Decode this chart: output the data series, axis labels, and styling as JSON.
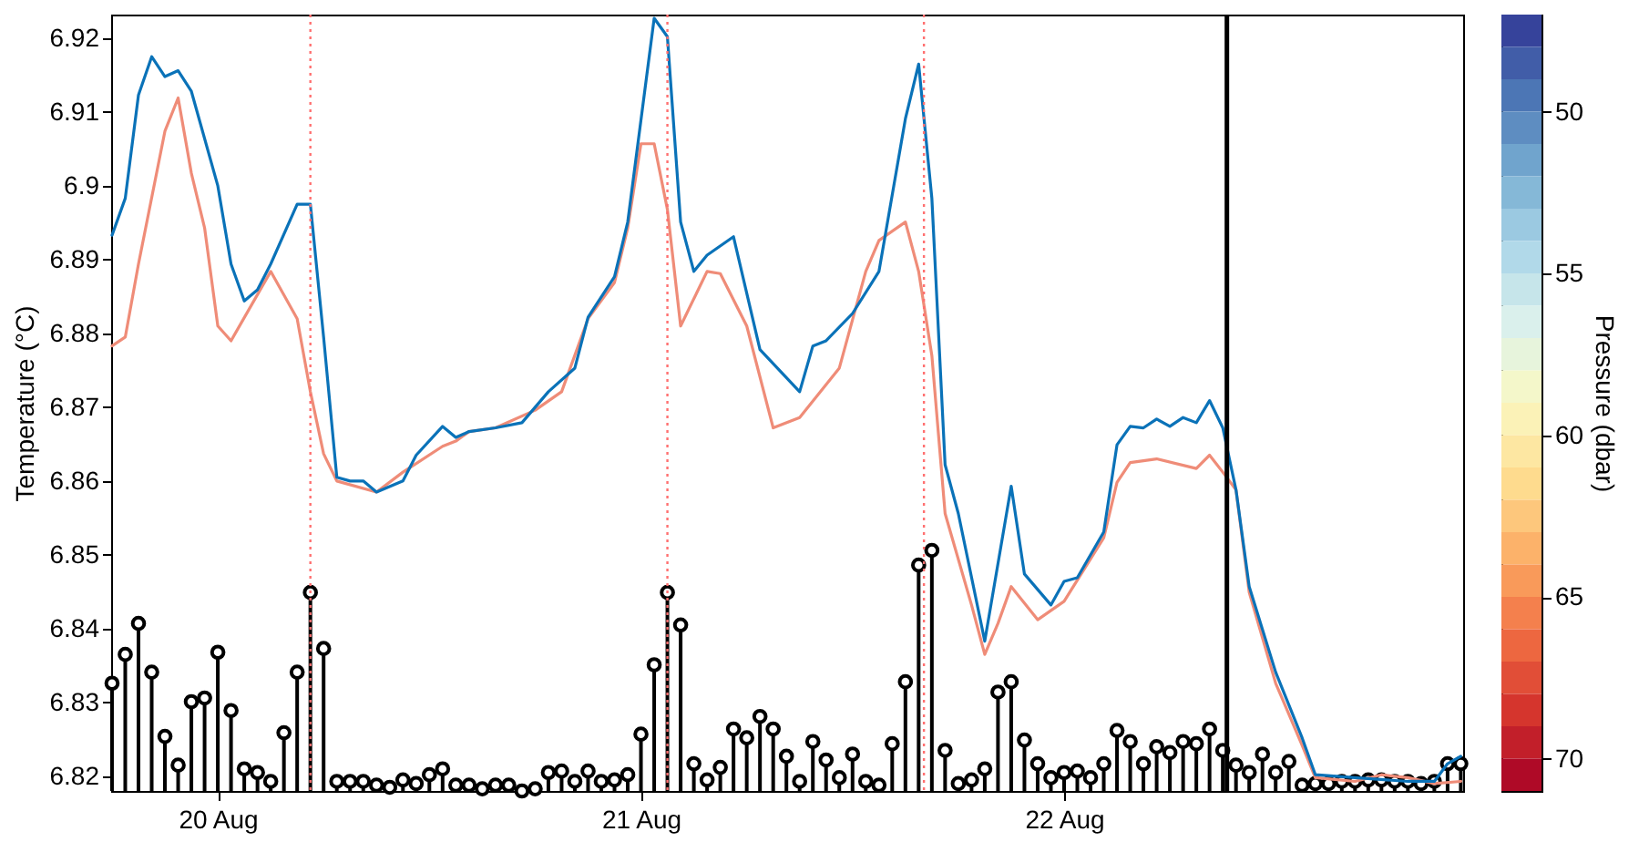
{
  "chart_data": {
    "type": "line",
    "ylabel": "Temperature (°C)",
    "clabel": "Pressure (dbar)",
    "xlim": [
      "--08-19T17:57",
      "--08-22T22:38"
    ],
    "ylim": [
      6.818,
      6.9232
    ],
    "xticks": [
      {
        "value": "--08-20",
        "label": "20 Aug"
      },
      {
        "value": "--08-21",
        "label": "21 Aug"
      },
      {
        "value": "--08-22",
        "label": "22 Aug"
      }
    ],
    "yticks": [
      6.82,
      6.83,
      6.84,
      6.85,
      6.86,
      6.87,
      6.88,
      6.89,
      6.9,
      6.91,
      6.92
    ],
    "clim": [
      47,
      71
    ],
    "cticks": [
      50,
      55,
      60,
      65,
      70
    ],
    "x": [
      "--08-19T18:00",
      "--08-19T18:45",
      "--08-19T19:30",
      "--08-19T20:15",
      "--08-19T21:00",
      "--08-19T21:45",
      "--08-19T22:30",
      "--08-19T23:15",
      "--08-20T00:00",
      "--08-20T00:45",
      "--08-20T01:30",
      "--08-20T02:15",
      "--08-20T03:00",
      "--08-20T03:45",
      "--08-20T04:30",
      "--08-20T05:15",
      "--08-20T06:00",
      "--08-20T06:45",
      "--08-20T07:30",
      "--08-20T08:15",
      "--08-20T09:00",
      "--08-20T09:45",
      "--08-20T10:30",
      "--08-20T11:15",
      "--08-20T12:00",
      "--08-20T12:45",
      "--08-20T13:30",
      "--08-20T14:15",
      "--08-20T15:00",
      "--08-20T15:45",
      "--08-20T16:30",
      "--08-20T17:15",
      "--08-20T18:00",
      "--08-20T18:45",
      "--08-20T19:30",
      "--08-20T20:15",
      "--08-20T21:00",
      "--08-20T21:45",
      "--08-20T22:30",
      "--08-20T23:15",
      "--08-21T00:00",
      "--08-21T00:45",
      "--08-21T01:30",
      "--08-21T02:15",
      "--08-21T03:00",
      "--08-21T03:45",
      "--08-21T04:30",
      "--08-21T05:15",
      "--08-21T06:00",
      "--08-21T06:45",
      "--08-21T07:30",
      "--08-21T08:15",
      "--08-21T09:00",
      "--08-21T09:45",
      "--08-21T10:30",
      "--08-21T11:15",
      "--08-21T12:00",
      "--08-21T12:45",
      "--08-21T13:30",
      "--08-21T14:15",
      "--08-21T15:00",
      "--08-21T15:45",
      "--08-21T16:30",
      "--08-21T17:15",
      "--08-21T18:00",
      "--08-21T18:45",
      "--08-21T19:30",
      "--08-21T20:15",
      "--08-21T21:00",
      "--08-21T21:45",
      "--08-21T22:30",
      "--08-21T23:15",
      "--08-22T00:00",
      "--08-22T00:45",
      "--08-22T01:30",
      "--08-22T02:15",
      "--08-22T03:00",
      "--08-22T03:45",
      "--08-22T04:30",
      "--08-22T05:15",
      "--08-22T06:00",
      "--08-22T06:45",
      "--08-22T07:30",
      "--08-22T08:15",
      "--08-22T09:00",
      "--08-22T09:45",
      "--08-22T10:30",
      "--08-22T11:15",
      "--08-22T12:00",
      "--08-22T12:45",
      "--08-22T13:30",
      "--08-22T14:15",
      "--08-22T15:00",
      "--08-22T15:45",
      "--08-22T16:30",
      "--08-22T17:15",
      "--08-22T18:00",
      "--08-22T18:45",
      "--08-22T19:30",
      "--08-22T20:15",
      "--08-22T21:00",
      "--08-22T21:45",
      "--08-22T22:30"
    ],
    "series": [
      {
        "type": "lollipop",
        "color": "#000000",
        "marker": "circle",
        "values": [
          6.8326,
          6.8365,
          6.8407,
          6.8341,
          6.8254,
          6.8215,
          6.8301,
          6.8306,
          6.8368,
          6.8289,
          6.821,
          6.8205,
          6.8193,
          6.8259,
          6.8341,
          6.8449,
          6.8373,
          6.8193,
          6.8193,
          6.8193,
          6.8188,
          6.8185,
          6.8195,
          6.819,
          6.8202,
          6.821,
          6.8188,
          6.8188,
          6.8183,
          6.8188,
          6.8188,
          6.818,
          6.8183,
          6.8205,
          6.8207,
          6.8193,
          6.8207,
          6.8193,
          6.8195,
          6.8202,
          6.8257,
          6.8351,
          6.8449,
          6.8405,
          6.8217,
          6.8195,
          6.8212,
          6.8264,
          6.8252,
          6.8281,
          6.8264,
          6.8227,
          6.8193,
          6.8247,
          6.8222,
          6.8198,
          6.823,
          6.8193,
          6.8188,
          6.8244,
          6.8328,
          6.8486,
          6.8506,
          6.8235,
          6.819,
          6.8195,
          6.821,
          6.8314,
          6.8328,
          6.8249,
          6.8217,
          6.8198,
          6.8205,
          6.8207,
          6.8198,
          6.8217,
          6.8262,
          6.8247,
          6.8217,
          6.824,
          6.8232,
          6.8247,
          6.8244,
          6.8264,
          6.8235,
          6.8215,
          6.8205,
          6.823,
          6.8205,
          6.822,
          6.8188,
          6.819,
          6.819,
          6.8193,
          6.8193,
          6.8195,
          6.8195,
          6.8193,
          6.8193,
          6.819,
          6.8193,
          6.8217,
          6.8217
        ]
      },
      {
        "type": "line",
        "color": "#ef8c78",
        "x": [
          "--08-19T18:00",
          "--08-19T18:45",
          "--08-19T19:30",
          "--08-19T21:00",
          "--08-19T21:45",
          "--08-19T22:30",
          "--08-19T23:15",
          "--08-20T00:00",
          "--08-20T00:45",
          "--08-20T03:00",
          "--08-20T04:30",
          "--08-20T05:15",
          "--08-20T06:00",
          "--08-20T06:45",
          "--08-20T09:00",
          "--08-20T10:30",
          "--08-20T12:45",
          "--08-20T13:30",
          "--08-20T14:15",
          "--08-20T15:45",
          "--08-20T18:00",
          "--08-20T19:30",
          "--08-20T21:00",
          "--08-20T22:30",
          "--08-20T23:15",
          "--08-21T00:00",
          "--08-21T00:45",
          "--08-21T01:30",
          "--08-21T02:15",
          "--08-21T03:45",
          "--08-21T04:30",
          "--08-21T06:00",
          "--08-21T07:30",
          "--08-21T09:00",
          "--08-21T11:15",
          "--08-21T12:45",
          "--08-21T13:30",
          "--08-21T15:00",
          "--08-21T15:45",
          "--08-21T16:30",
          "--08-21T17:15",
          "--08-21T18:45",
          "--08-21T19:30",
          "--08-21T20:15",
          "--08-21T21:00",
          "--08-21T22:30",
          "--08-22T00:00",
          "--08-22T02:15",
          "--08-22T03:00",
          "--08-22T03:45",
          "--08-22T05:15",
          "--08-22T07:30",
          "--08-22T08:15",
          "--08-22T09:00",
          "--08-22T09:45",
          "--08-22T10:30",
          "--08-22T12:00",
          "--08-22T13:30",
          "--08-22T14:15",
          "--08-22T16:30",
          "--08-22T18:00",
          "--08-22T19:30",
          "--08-22T21:00",
          "--08-22T22:30"
        ],
        "values": [
          6.8783,
          6.8795,
          6.8894,
          6.9074,
          6.9119,
          6.9017,
          6.8943,
          6.881,
          6.879,
          6.8884,
          6.882,
          6.8721,
          6.8637,
          6.86,
          6.8585,
          6.8612,
          6.8647,
          6.8654,
          6.8667,
          6.8672,
          6.8696,
          6.8721,
          6.882,
          6.8869,
          6.8943,
          6.9057,
          6.9057,
          6.8968,
          6.881,
          6.8884,
          6.8881,
          6.881,
          6.8672,
          6.8686,
          6.8753,
          6.8884,
          6.8926,
          6.8951,
          6.8884,
          6.877,
          6.8556,
          6.8432,
          6.8365,
          6.8407,
          6.8457,
          6.8412,
          6.8437,
          6.8523,
          6.8598,
          6.8625,
          6.863,
          6.8617,
          6.8635,
          6.8612,
          6.8588,
          6.8449,
          6.8326,
          6.8242,
          6.8198,
          6.8193,
          6.8202,
          6.8198,
          6.819,
          6.8193
        ]
      },
      {
        "type": "line",
        "color": "#0a72b8",
        "x": [
          "--08-19T18:00",
          "--08-19T18:45",
          "--08-19T19:30",
          "--08-19T20:15",
          "--08-19T21:00",
          "--08-19T21:45",
          "--08-19T22:30",
          "--08-20T00:00",
          "--08-20T00:45",
          "--08-20T01:30",
          "--08-20T02:15",
          "--08-20T03:00",
          "--08-20T04:30",
          "--08-20T05:15",
          "--08-20T06:00",
          "--08-20T06:45",
          "--08-20T07:30",
          "--08-20T08:15",
          "--08-20T09:00",
          "--08-20T10:30",
          "--08-20T11:15",
          "--08-20T12:45",
          "--08-20T13:30",
          "--08-20T14:15",
          "--08-20T15:45",
          "--08-20T17:15",
          "--08-20T18:45",
          "--08-20T20:15",
          "--08-20T21:00",
          "--08-20T22:30",
          "--08-20T23:15",
          "--08-21T00:45",
          "--08-21T01:30",
          "--08-21T02:15",
          "--08-21T03:00",
          "--08-21T03:45",
          "--08-21T05:15",
          "--08-21T06:45",
          "--08-21T09:00",
          "--08-21T09:45",
          "--08-21T10:30",
          "--08-21T12:00",
          "--08-21T13:30",
          "--08-21T15:00",
          "--08-21T15:45",
          "--08-21T16:30",
          "--08-21T17:15",
          "--08-21T18:00",
          "--08-21T19:30",
          "--08-21T21:00",
          "--08-21T21:45",
          "--08-21T23:15",
          "--08-22T00:00",
          "--08-22T00:45",
          "--08-22T02:15",
          "--08-22T03:00",
          "--08-22T03:45",
          "--08-22T04:30",
          "--08-22T05:15",
          "--08-22T06:00",
          "--08-22T06:45",
          "--08-22T07:30",
          "--08-22T08:15",
          "--08-22T09:00",
          "--08-22T09:45",
          "--08-22T10:30",
          "--08-22T12:00",
          "--08-22T13:30",
          "--08-22T14:15",
          "--08-22T16:30",
          "--08-22T19:30",
          "--08-22T21:00",
          "--08-22T21:45",
          "--08-22T22:30"
        ],
        "values": [
          6.8933,
          6.8983,
          6.9123,
          6.9175,
          6.9148,
          6.9156,
          6.9128,
          6.9,
          6.8894,
          6.8844,
          6.8859,
          6.8894,
          6.8975,
          6.8975,
          6.8795,
          6.8605,
          6.86,
          6.86,
          6.8585,
          6.86,
          6.8635,
          6.8674,
          6.8659,
          6.8667,
          6.8672,
          6.8679,
          6.8721,
          6.8753,
          6.8822,
          6.8877,
          6.8951,
          6.9227,
          6.9202,
          6.8951,
          6.8884,
          6.8906,
          6.8931,
          6.8778,
          6.8721,
          6.8783,
          6.879,
          6.8827,
          6.8884,
          6.9091,
          6.9165,
          6.8983,
          6.8622,
          6.8556,
          6.8383,
          6.8593,
          6.8474,
          6.8432,
          6.8464,
          6.8469,
          6.8531,
          6.8649,
          6.8674,
          6.8672,
          6.8684,
          6.8674,
          6.8686,
          6.8679,
          6.8709,
          6.8672,
          6.8588,
          6.8457,
          6.8341,
          6.8252,
          6.8202,
          6.8198,
          6.8193,
          6.8193,
          6.8217,
          6.8227
        ]
      }
    ],
    "ref_lines": [
      {
        "axis": "x",
        "value": "--08-20T05:15",
        "color": "#ff7070",
        "line_style": "dotted"
      },
      {
        "axis": "x",
        "value": "--08-21T01:30",
        "color": "#ff7070",
        "line_style": "dotted"
      },
      {
        "axis": "x",
        "value": "--08-21T16:03",
        "color": "#ff7070",
        "line_style": "dotted"
      },
      {
        "axis": "x",
        "value": "--08-22T09:14",
        "color": "#000000",
        "line_style": "solid"
      }
    ]
  }
}
